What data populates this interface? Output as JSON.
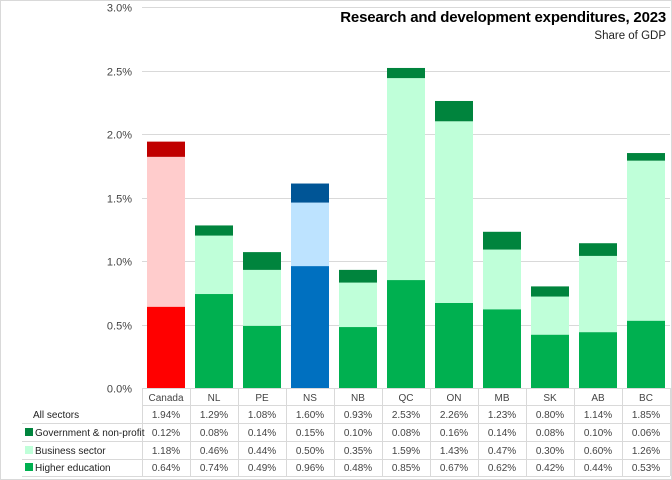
{
  "chart_data": {
    "type": "bar",
    "stacked": true,
    "title": "Research and development expenditures, 2023",
    "subtitle": "Share of GDP",
    "xlabel": "",
    "ylabel": "",
    "ylim": [
      0,
      3.0
    ],
    "yticks": [
      "0.0%",
      "0.5%",
      "1.0%",
      "1.5%",
      "2.0%",
      "2.5%",
      "3.0%"
    ],
    "ytick_values": [
      0,
      0.5,
      1.0,
      1.5,
      2.0,
      2.5,
      3.0
    ],
    "grid": true,
    "categories": [
      "Canada",
      "NL",
      "PE",
      "NS",
      "NB",
      "QC",
      "ON",
      "MB",
      "SK",
      "AB",
      "BC"
    ],
    "series": [
      {
        "name": "Higher education",
        "values": [
          0.64,
          0.74,
          0.49,
          0.96,
          0.48,
          0.85,
          0.67,
          0.62,
          0.42,
          0.44,
          0.53
        ],
        "color": "#00B050"
      },
      {
        "name": "Business sector",
        "values": [
          1.18,
          0.46,
          0.44,
          0.5,
          0.35,
          1.59,
          1.43,
          0.47,
          0.3,
          0.6,
          1.26
        ],
        "color": "#BFFFD9"
      },
      {
        "name": "Government & non-profit",
        "values": [
          0.12,
          0.08,
          0.14,
          0.15,
          0.1,
          0.08,
          0.16,
          0.14,
          0.08,
          0.1,
          0.06
        ],
        "color": "#00843D"
      }
    ],
    "highlight_colors": {
      "Canada": [
        "#FF0000",
        "#FFCCCC",
        "#C00000"
      ],
      "NS": [
        "#0070C0",
        "#BDE3FF",
        "#005596"
      ]
    },
    "data_table": {
      "rows": [
        {
          "label": "All sectors",
          "legend_color": null,
          "values": [
            "1.94%",
            "1.29%",
            "1.08%",
            "1.60%",
            "0.93%",
            "2.53%",
            "2.26%",
            "1.23%",
            "0.80%",
            "1.14%",
            "1.85%"
          ]
        },
        {
          "label": "Government & non-profit",
          "legend_color": "#00843D",
          "values": [
            "0.12%",
            "0.08%",
            "0.14%",
            "0.15%",
            "0.10%",
            "0.08%",
            "0.16%",
            "0.14%",
            "0.08%",
            "0.10%",
            "0.06%"
          ]
        },
        {
          "label": "Business sector",
          "legend_color": "#BFFFD9",
          "values": [
            "1.18%",
            "0.46%",
            "0.44%",
            "0.50%",
            "0.35%",
            "1.59%",
            "1.43%",
            "0.47%",
            "0.30%",
            "0.60%",
            "1.26%"
          ]
        },
        {
          "label": "Higher education",
          "legend_color": "#00B050",
          "values": [
            "0.64%",
            "0.74%",
            "0.49%",
            "0.96%",
            "0.48%",
            "0.85%",
            "0.67%",
            "0.62%",
            "0.42%",
            "0.44%",
            "0.53%"
          ]
        }
      ]
    },
    "legend_placement": "data-table"
  }
}
